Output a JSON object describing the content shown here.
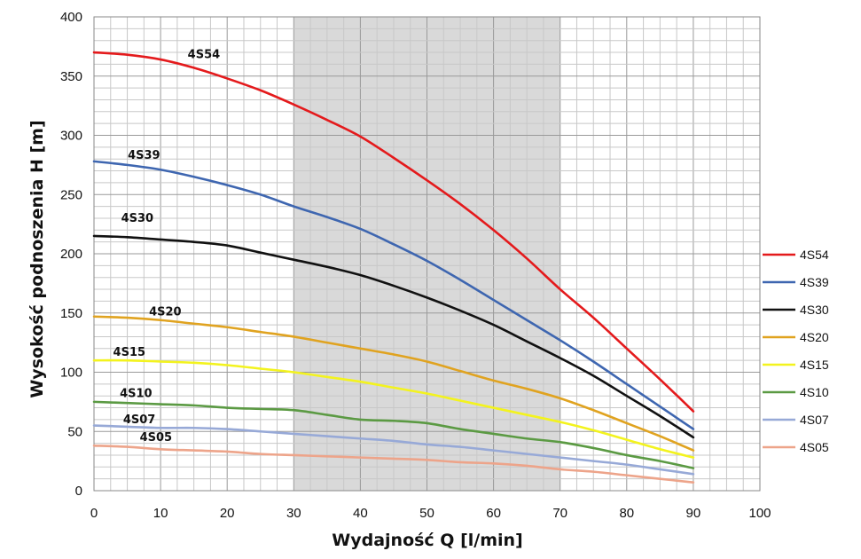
{
  "chart_data": {
    "type": "line",
    "xlabel": "Wydajność Q [l/min]",
    "ylabel": "Wysokość podnoszenia H [m]",
    "xlim": [
      0,
      100
    ],
    "ylim": [
      0,
      400
    ],
    "x_ticks": [
      0,
      10,
      20,
      30,
      40,
      50,
      60,
      70,
      80,
      90,
      100
    ],
    "y_ticks": [
      0,
      50,
      100,
      150,
      200,
      250,
      300,
      350,
      400
    ],
    "grid": true,
    "highlight_band": {
      "x_from": 30,
      "x_to": 70,
      "color": "#d9d9d9"
    },
    "legend_position": "right",
    "series": [
      {
        "name": "4S54",
        "color": "#e41a1c",
        "points": [
          [
            0,
            370
          ],
          [
            5,
            368
          ],
          [
            10,
            364
          ],
          [
            15,
            357
          ],
          [
            20,
            348
          ],
          [
            25,
            338
          ],
          [
            30,
            326
          ],
          [
            35,
            313
          ],
          [
            40,
            299
          ],
          [
            45,
            281
          ],
          [
            50,
            262
          ],
          [
            55,
            242
          ],
          [
            60,
            220
          ],
          [
            65,
            196
          ],
          [
            70,
            170
          ],
          [
            75,
            146
          ],
          [
            80,
            120
          ],
          [
            85,
            94
          ],
          [
            90,
            67
          ]
        ]
      },
      {
        "name": "4S39",
        "color": "#3e66b0",
        "points": [
          [
            0,
            278
          ],
          [
            5,
            275
          ],
          [
            10,
            271
          ],
          [
            15,
            265
          ],
          [
            20,
            258
          ],
          [
            25,
            250
          ],
          [
            30,
            240
          ],
          [
            35,
            231
          ],
          [
            40,
            221
          ],
          [
            45,
            208
          ],
          [
            50,
            194
          ],
          [
            55,
            178
          ],
          [
            60,
            161
          ],
          [
            65,
            144
          ],
          [
            70,
            127
          ],
          [
            75,
            109
          ],
          [
            80,
            90
          ],
          [
            85,
            71
          ],
          [
            90,
            52
          ]
        ]
      },
      {
        "name": "4S30",
        "color": "#111111",
        "points": [
          [
            0,
            215
          ],
          [
            5,
            214
          ],
          [
            10,
            212
          ],
          [
            15,
            210
          ],
          [
            20,
            207
          ],
          [
            25,
            201
          ],
          [
            30,
            195
          ],
          [
            35,
            189
          ],
          [
            40,
            182
          ],
          [
            45,
            173
          ],
          [
            50,
            163
          ],
          [
            55,
            152
          ],
          [
            60,
            140
          ],
          [
            65,
            126
          ],
          [
            70,
            112
          ],
          [
            75,
            97
          ],
          [
            80,
            80
          ],
          [
            85,
            63
          ],
          [
            90,
            45
          ]
        ]
      },
      {
        "name": "4S20",
        "color": "#e0a320",
        "points": [
          [
            0,
            147
          ],
          [
            5,
            146
          ],
          [
            10,
            144
          ],
          [
            15,
            141
          ],
          [
            20,
            138
          ],
          [
            25,
            134
          ],
          [
            30,
            130
          ],
          [
            35,
            125
          ],
          [
            40,
            120
          ],
          [
            45,
            115
          ],
          [
            50,
            109
          ],
          [
            55,
            101
          ],
          [
            60,
            93
          ],
          [
            65,
            86
          ],
          [
            70,
            78
          ],
          [
            75,
            68
          ],
          [
            80,
            57
          ],
          [
            85,
            46
          ],
          [
            90,
            34
          ]
        ]
      },
      {
        "name": "4S15",
        "color": "#f3f31e",
        "points": [
          [
            0,
            110
          ],
          [
            5,
            110
          ],
          [
            10,
            109
          ],
          [
            15,
            108
          ],
          [
            20,
            106
          ],
          [
            25,
            103
          ],
          [
            30,
            100
          ],
          [
            35,
            96
          ],
          [
            40,
            92
          ],
          [
            45,
            87
          ],
          [
            50,
            82
          ],
          [
            55,
            76
          ],
          [
            60,
            70
          ],
          [
            65,
            64
          ],
          [
            70,
            58
          ],
          [
            75,
            51
          ],
          [
            80,
            43
          ],
          [
            85,
            35
          ],
          [
            90,
            28
          ]
        ]
      },
      {
        "name": "4S10",
        "color": "#5b9a43",
        "points": [
          [
            0,
            75
          ],
          [
            5,
            74
          ],
          [
            10,
            73
          ],
          [
            15,
            72
          ],
          [
            20,
            70
          ],
          [
            25,
            69
          ],
          [
            30,
            68
          ],
          [
            35,
            64
          ],
          [
            40,
            60
          ],
          [
            45,
            59
          ],
          [
            50,
            57
          ],
          [
            55,
            52
          ],
          [
            60,
            48
          ],
          [
            65,
            44
          ],
          [
            70,
            41
          ],
          [
            75,
            36
          ],
          [
            80,
            30
          ],
          [
            85,
            25
          ],
          [
            90,
            19
          ]
        ]
      },
      {
        "name": "4S07",
        "color": "#97a9d7",
        "points": [
          [
            0,
            55
          ],
          [
            5,
            54
          ],
          [
            10,
            53
          ],
          [
            15,
            53
          ],
          [
            20,
            52
          ],
          [
            25,
            50
          ],
          [
            30,
            48
          ],
          [
            35,
            46
          ],
          [
            40,
            44
          ],
          [
            45,
            42
          ],
          [
            50,
            39
          ],
          [
            55,
            37
          ],
          [
            60,
            34
          ],
          [
            65,
            31
          ],
          [
            70,
            28
          ],
          [
            75,
            25
          ],
          [
            80,
            22
          ],
          [
            85,
            18
          ],
          [
            90,
            14
          ]
        ]
      },
      {
        "name": "4S05",
        "color": "#eda48a",
        "points": [
          [
            0,
            38
          ],
          [
            5,
            37
          ],
          [
            10,
            35
          ],
          [
            15,
            34
          ],
          [
            20,
            33
          ],
          [
            25,
            31
          ],
          [
            30,
            30
          ],
          [
            35,
            29
          ],
          [
            40,
            28
          ],
          [
            45,
            27
          ],
          [
            50,
            26
          ],
          [
            55,
            24
          ],
          [
            60,
            23
          ],
          [
            65,
            21
          ],
          [
            70,
            18
          ],
          [
            75,
            16
          ],
          [
            80,
            13
          ],
          [
            85,
            10
          ],
          [
            90,
            7
          ]
        ]
      }
    ],
    "curve_labels": [
      {
        "text": "4S54",
        "x": 16.5,
        "y": 365
      },
      {
        "text": "4S39",
        "x": 7.5,
        "y": 280
      },
      {
        "text": "4S30",
        "x": 6.5,
        "y": 227
      },
      {
        "text": "4S20",
        "x": 10.7,
        "y": 148
      },
      {
        "text": "4S15",
        "x": 5.3,
        "y": 114
      },
      {
        "text": "4S10",
        "x": 6.3,
        "y": 79
      },
      {
        "text": "4S07",
        "x": 6.8,
        "y": 57
      },
      {
        "text": "4S05",
        "x": 9.3,
        "y": 42
      }
    ]
  }
}
